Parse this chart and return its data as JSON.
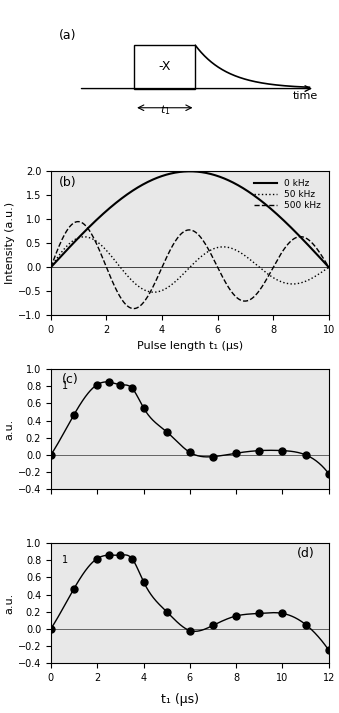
{
  "panel_a": {
    "label": "(a)",
    "box_text": "-X",
    "arrow_label": "t₁",
    "time_label": "time"
  },
  "panel_b": {
    "label": "(b)",
    "xlabel": "Pulse length t₁ (μs)",
    "ylabel": "Intensity (a.u.)",
    "xlim": [
      0,
      10
    ],
    "ylim": [
      -1,
      2
    ],
    "yticks": [
      -1,
      -0.5,
      0,
      0.5,
      1,
      1.5,
      2
    ],
    "xticks": [
      0,
      2,
      4,
      6,
      8,
      10
    ],
    "legend": [
      "0 kHz",
      "50 kHz",
      "500 kHz"
    ],
    "line_styles": [
      "-",
      ":",
      "--"
    ]
  },
  "panel_c": {
    "label": "(c)",
    "ylabel": "a.u.",
    "xlim": [
      0,
      12
    ],
    "ylim": [
      -0.4,
      1.0
    ],
    "yticks": [
      -0.4,
      -0.2,
      0,
      0.2,
      0.4,
      0.6,
      0.8,
      1.0
    ],
    "xticks": [
      0,
      2,
      4,
      6,
      8,
      10,
      12
    ],
    "x_data": [
      0,
      1,
      2,
      2.5,
      3,
      3.5,
      4,
      5,
      6,
      7,
      8,
      9,
      10,
      11,
      12
    ],
    "y_data": [
      0.0,
      0.47,
      0.82,
      0.85,
      0.82,
      0.78,
      0.55,
      0.27,
      0.03,
      -0.02,
      0.02,
      0.05,
      0.05,
      0.0,
      -0.22
    ]
  },
  "panel_d": {
    "label": "(d)",
    "ylabel": "a.u.",
    "xlabel": "t₁ (μs)",
    "xlim": [
      0,
      12
    ],
    "ylim": [
      -0.4,
      1.0
    ],
    "yticks": [
      -0.4,
      -0.2,
      0,
      0.2,
      0.4,
      0.6,
      0.8,
      1.0
    ],
    "xticks": [
      0,
      2,
      4,
      6,
      8,
      10,
      12
    ],
    "x_data": [
      0,
      1,
      2,
      2.5,
      3,
      3.5,
      4,
      5,
      6,
      7,
      8,
      9,
      10,
      11,
      12
    ],
    "y_data": [
      0.0,
      0.47,
      0.82,
      0.86,
      0.86,
      0.82,
      0.55,
      0.2,
      -0.02,
      0.04,
      0.15,
      0.18,
      0.18,
      0.05,
      -0.25
    ]
  },
  "bg_color": "#e8e8e8",
  "line_color": "#000000"
}
